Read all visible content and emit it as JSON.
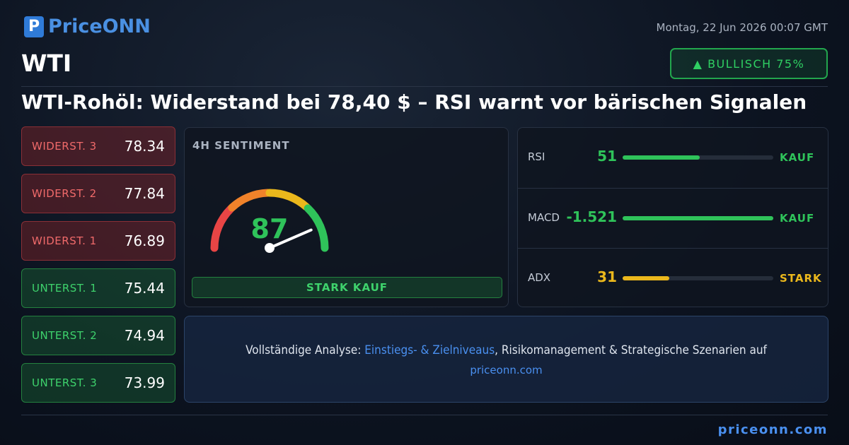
{
  "header": {
    "logo": "PriceONN",
    "date": "Montag, 22 Jun 2026 00:07 GMT",
    "symbol": "WTI",
    "badge": "▲ BULLISCH 75%",
    "title": "WTI-Rohöl: Widerstand bei 78,40 $ – RSI warnt vor bärischen Signalen"
  },
  "levels": [
    {
      "label": "WIDERST. 3",
      "value": 78.34
    },
    {
      "label": "WIDERST. 2",
      "value": 77.84
    },
    {
      "label": "WIDERST. 1",
      "value": 76.89
    },
    {
      "label": "UNTERST. 1",
      "value": 75.44
    },
    {
      "label": "UNTERST. 2",
      "value": 74.94
    },
    {
      "label": "UNTERST. 3",
      "value": 73.99
    }
  ],
  "sentiment": {
    "title": "4H SENTIMENT",
    "value": 87,
    "signal": "STARK KAUF"
  },
  "indicators": [
    {
      "name": "RSI",
      "value": 51,
      "signal": "KAUF"
    },
    {
      "name": "MACD",
      "value": -1.521,
      "signal": "KAUF"
    },
    {
      "name": "ADX",
      "value": 31,
      "signal": "STARK"
    }
  ],
  "cta": {
    "prefix": "Vollständige Analyse:",
    "highlight": "Einstiegs- & Zielniveaus",
    "suffix": ", Risikomanagement & Strategische Szenarien auf",
    "link": "priceonn.com"
  },
  "footer": "priceonn.com"
}
